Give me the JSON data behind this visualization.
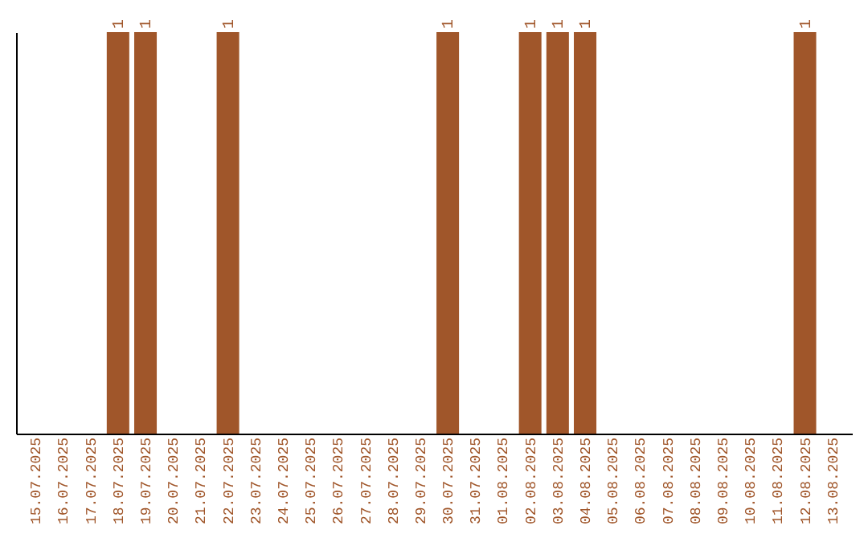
{
  "chart_data": {
    "type": "bar",
    "categories": [
      "15.07.2025",
      "16.07.2025",
      "17.07.2025",
      "18.07.2025",
      "19.07.2025",
      "20.07.2025",
      "21.07.2025",
      "22.07.2025",
      "23.07.2025",
      "24.07.2025",
      "25.07.2025",
      "26.07.2025",
      "27.07.2025",
      "28.07.2025",
      "29.07.2025",
      "30.07.2025",
      "31.07.2025",
      "01.08.2025",
      "02.08.2025",
      "03.08.2025",
      "04.08.2025",
      "05.08.2025",
      "06.08.2025",
      "07.08.2025",
      "08.08.2025",
      "09.08.2025",
      "10.08.2025",
      "11.08.2025",
      "12.08.2025",
      "13.08.2025"
    ],
    "values": [
      0,
      0,
      0,
      1,
      1,
      0,
      0,
      1,
      0,
      0,
      0,
      0,
      0,
      0,
      0,
      1,
      0,
      0,
      1,
      1,
      1,
      0,
      0,
      0,
      0,
      0,
      0,
      0,
      1,
      0
    ],
    "value_labels": [
      null,
      null,
      null,
      "1",
      "1",
      null,
      null,
      "1",
      null,
      null,
      null,
      null,
      null,
      null,
      null,
      "1",
      null,
      null,
      "1",
      "1",
      "1",
      null,
      null,
      null,
      null,
      null,
      null,
      null,
      "1",
      null
    ],
    "color": "#a0562a",
    "grid": false
  }
}
